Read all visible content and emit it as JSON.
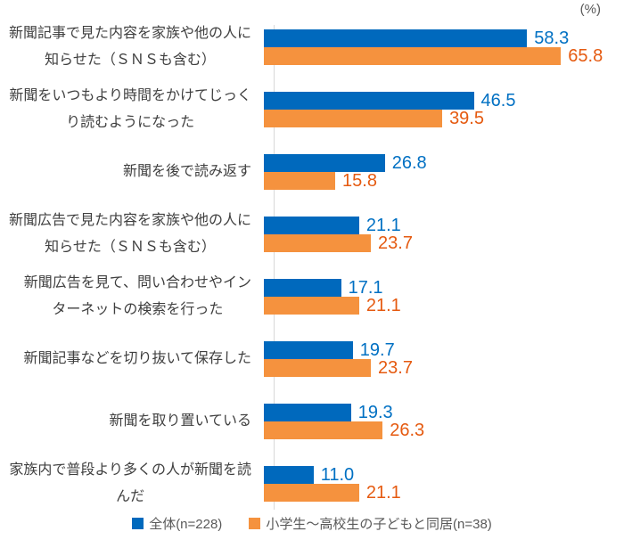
{
  "percent_label": "(%)",
  "colors": {
    "bar_total": "#0069bd",
    "bar_cohabit": "#f5923e",
    "value_total_text": "#0070c3",
    "value_cohabit_text": "#e55a10",
    "category_text": "#3f3f3f",
    "legend_text": "#595959",
    "axis_line": "#d9d9d9"
  },
  "legend": [
    {
      "label": "全体(n=228)",
      "color": "#0069bd"
    },
    {
      "label": "小学生～高校生の子どもと同居(n=38)",
      "color": "#f5923e"
    }
  ],
  "chart_data": {
    "type": "bar",
    "orientation": "horizontal",
    "unit": "%",
    "title": "",
    "xlabel": "(%)",
    "ylabel": "",
    "xlim": [
      0,
      77
    ],
    "grid": false,
    "value_labels": true,
    "legend_position": "bottom",
    "categories": [
      "新聞記事で見た内容を家族や他の人に知らせた（ＳＮＳも含む）",
      "新聞をいつもより時間をかけてじっくり読むようになった",
      "新聞を後で読み返す",
      "新聞広告で見た内容を家族や他の人に知らせた（ＳＮＳも含む）",
      "新聞広告を見て、問い合わせやインターネットの検索を行った",
      "新聞記事などを切り抜いて保存した",
      "新聞を取り置いている",
      "家族内で普段より多くの人が新聞を読んだ"
    ],
    "categories_wrapped": [
      [
        "新聞記事で見た内容を家族や他の人に",
        "知らせた（ＳＮＳも含む）"
      ],
      [
        "新聞をいつもより時間をかけてじっく",
        "り読むようになった"
      ],
      [
        "新聞を後で読み返す"
      ],
      [
        "新聞広告で見た内容を家族や他の人に",
        "知らせた（ＳＮＳも含む）"
      ],
      [
        "新聞広告を見て、問い合わせやイン",
        "ターネットの検索を行った"
      ],
      [
        "新聞記事などを切り抜いて保存した"
      ],
      [
        "新聞を取り置いている"
      ],
      [
        "家族内で普段より多くの人が新聞を読",
        "んだ"
      ]
    ],
    "series": [
      {
        "name": "全体(n=228)",
        "color": "#0069bd",
        "values": [
          58.3,
          46.5,
          26.8,
          21.1,
          17.1,
          19.7,
          19.3,
          11.0
        ]
      },
      {
        "name": "小学生～高校生の子どもと同居(n=38)",
        "color": "#f5923e",
        "values": [
          65.8,
          39.5,
          15.8,
          23.7,
          21.1,
          23.7,
          26.3,
          21.1
        ]
      }
    ]
  }
}
